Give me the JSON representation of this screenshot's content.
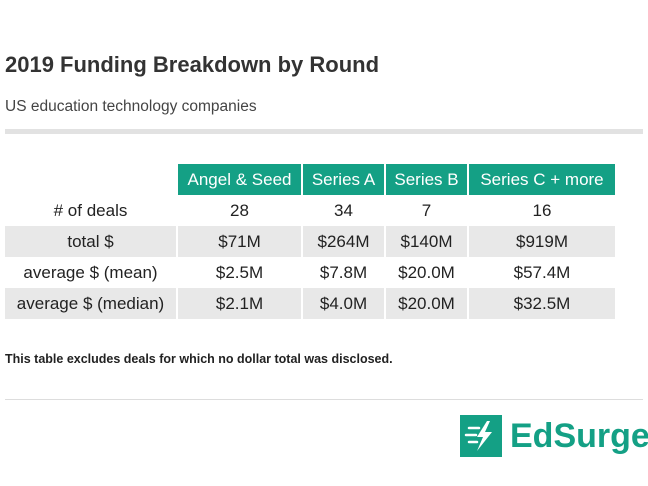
{
  "title": "2019 Funding Breakdown by Round",
  "subtitle": "US education technology companies",
  "footnote": "This table excludes deals for which no dollar total was disclosed.",
  "brand": {
    "name": "EdSurge",
    "color": "#14a085",
    "icon": "lightning-bolt-icon"
  },
  "chart_data": {
    "type": "table",
    "title": "2019 Funding Breakdown by Round",
    "subtitle": "US education technology companies",
    "columns": [
      "Angel & Seed",
      "Series A",
      "Series B",
      "Series C + more"
    ],
    "rows": [
      {
        "label": "# of deals",
        "values": [
          "28",
          "34",
          "7",
          "16"
        ]
      },
      {
        "label": "total $",
        "values": [
          "$71M",
          "$264M",
          "$140M",
          "$919M"
        ]
      },
      {
        "label": "average $ (mean)",
        "values": [
          "$2.5M",
          "$7.8M",
          "$20.0M",
          "$57.4M"
        ]
      },
      {
        "label": "average $ (median)",
        "values": [
          "$2.1M",
          "$4.0M",
          "$20.0M",
          "$32.5M"
        ]
      }
    ],
    "header_color": "#14a085",
    "shaded_row_color": "#e8e8e8"
  }
}
